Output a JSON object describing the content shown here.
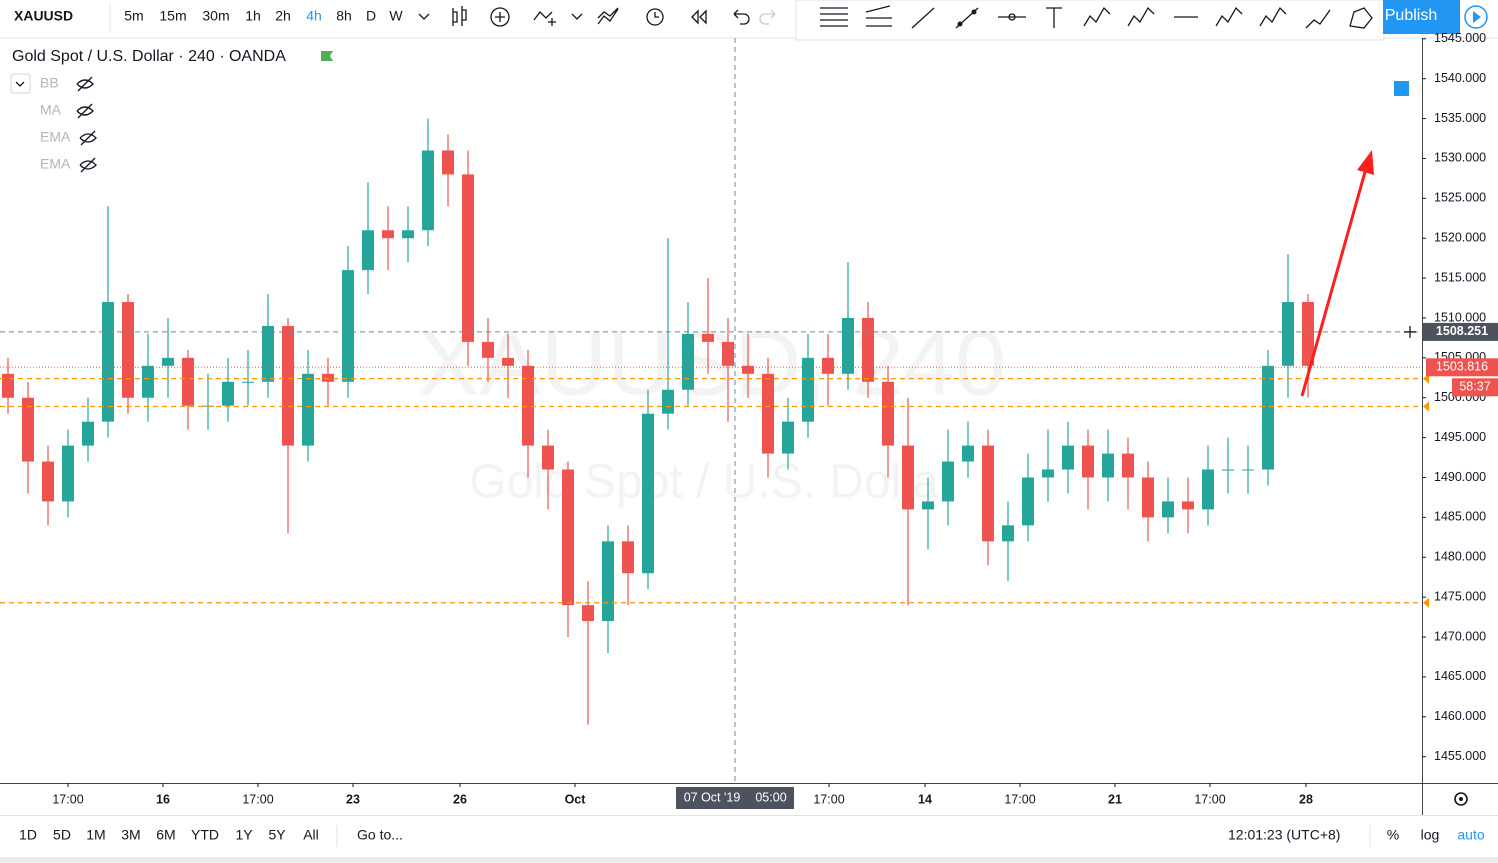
{
  "toolbar": {
    "symbol": "XAUUSD",
    "intervals": [
      "5m",
      "15m",
      "30m",
      "1h",
      "2h",
      "4h",
      "8h",
      "D",
      "W"
    ],
    "publish": "Publish"
  },
  "legend": {
    "title": "Gold Spot / U.S. Dollar · 240 · OANDA",
    "indicators": [
      "BB",
      "MA",
      "EMA",
      "EMA"
    ]
  },
  "watermark": {
    "symbol": "XAUUSD, 240",
    "name": "Gold Spot / U.S. Dollar"
  },
  "chart_data": {
    "type": "candlestick",
    "up_color": "#26a69a",
    "down_color": "#ef5350",
    "open": [
      1503,
      1500,
      1492,
      1487,
      1494,
      1497,
      1512,
      1500,
      1504,
      1505,
      1499,
      1499,
      1502,
      1502,
      1509,
      1494,
      1503,
      1502,
      1516,
      1521,
      1520,
      1521,
      1531,
      1528,
      1507,
      1505,
      1504,
      1494,
      1491,
      1474,
      1472,
      1482,
      1478,
      1498,
      1501,
      1508,
      1507,
      1504,
      1503,
      1493,
      1497,
      1505,
      1503,
      1510,
      1502,
      1494,
      1486,
      1487,
      1492,
      1494,
      1482,
      1484,
      1490,
      1491,
      1494,
      1490,
      1493,
      1490,
      1485,
      1487,
      1486,
      1491,
      1491,
      1491,
      1504,
      1512
    ],
    "high": [
      1505,
      1502,
      1494,
      1496,
      1500,
      1524,
      1513,
      1508,
      1510,
      1506,
      1503,
      1505,
      1506,
      1513,
      1510,
      1506,
      1505,
      1519,
      1527,
      1524,
      1524,
      1535,
      1533,
      1531,
      1510,
      1508,
      1506,
      1496,
      1492,
      1477,
      1484,
      1484,
      1501,
      1520,
      1512,
      1515,
      1510,
      1508,
      1505,
      1500,
      1508,
      1508,
      1517,
      1512,
      1504,
      1500,
      1490,
      1496,
      1497,
      1496,
      1487,
      1493,
      1496,
      1497,
      1496,
      1496,
      1495,
      1492,
      1490,
      1490,
      1494,
      1495,
      1494,
      1506,
      1518,
      1513
    ],
    "low": [
      1498,
      1488,
      1484,
      1485,
      1492,
      1495,
      1498,
      1497,
      1500,
      1496,
      1496,
      1497,
      1499,
      1500,
      1483,
      1492,
      1499,
      1500,
      1513,
      1516,
      1517,
      1519,
      1524,
      1504,
      1502,
      1500,
      1490,
      1486,
      1470,
      1459,
      1468,
      1474,
      1476,
      1496,
      1499,
      1503,
      1497,
      1500,
      1490,
      1491,
      1495,
      1499,
      1501,
      1500,
      1490,
      1474,
      1481,
      1484,
      1490,
      1479,
      1477,
      1482,
      1487,
      1488,
      1486,
      1487,
      1486,
      1482,
      1483,
      1483,
      1484,
      1488,
      1488,
      1489,
      1500,
      1500
    ],
    "close": [
      1500,
      1492,
      1487,
      1494,
      1497,
      1512,
      1500,
      1504,
      1505,
      1499,
      1499,
      1502,
      1502,
      1509,
      1494,
      1503,
      1502,
      1516,
      1521,
      1520,
      1521,
      1531,
      1528,
      1507,
      1505,
      1504,
      1494,
      1491,
      1474,
      1472,
      1482,
      1478,
      1498,
      1501,
      1508,
      1507,
      1504,
      1503,
      1493,
      1497,
      1505,
      1503,
      1510,
      1502,
      1494,
      1486,
      1487,
      1492,
      1494,
      1482,
      1484,
      1490,
      1491,
      1494,
      1490,
      1493,
      1490,
      1485,
      1487,
      1486,
      1491,
      1491,
      1491,
      1504,
      1512,
      1504
    ],
    "xlim": [
      -0.4,
      70.7
    ],
    "ylim": [
      1451.7,
      1545.1
    ],
    "yticks": [
      {
        "value": 1455,
        "label": "1455.000"
      },
      {
        "value": 1460,
        "label": "1460.000"
      },
      {
        "value": 1465,
        "label": "1465.000"
      },
      {
        "value": 1470,
        "label": "1470.000"
      },
      {
        "value": 1475,
        "label": "1475.000"
      },
      {
        "value": 1480,
        "label": "1480.000"
      },
      {
        "value": 1485,
        "label": "1485.000"
      },
      {
        "value": 1490,
        "label": "1490.000"
      },
      {
        "value": 1495,
        "label": "1495.000"
      },
      {
        "value": 1500,
        "label": "1500.000"
      },
      {
        "value": 1505,
        "label": "1505.000"
      },
      {
        "value": 1510,
        "label": "1510.000"
      },
      {
        "value": 1515,
        "label": "1515.000"
      },
      {
        "value": 1520,
        "label": "1520.000"
      },
      {
        "value": 1525,
        "label": "1525.000"
      },
      {
        "value": 1530,
        "label": "1530.000"
      },
      {
        "value": 1535,
        "label": "1535.000"
      },
      {
        "value": 1540,
        "label": "1540.000"
      },
      {
        "value": 1545,
        "label": "1545.000"
      }
    ],
    "xticks": [
      {
        "value": 3,
        "label": "17:00"
      },
      {
        "value": 7.75,
        "label": "16"
      },
      {
        "value": 12.5,
        "label": "17:00"
      },
      {
        "value": 17.25,
        "label": "23"
      },
      {
        "value": 22.6,
        "label": "26"
      },
      {
        "value": 28.35,
        "label": "Oct"
      },
      {
        "value": 41.05,
        "label": "17:00"
      },
      {
        "value": 45.85,
        "label": "14"
      },
      {
        "value": 50.6,
        "label": "17:00"
      },
      {
        "value": 55.35,
        "label": "21"
      },
      {
        "value": 60.1,
        "label": "17:00"
      },
      {
        "value": 64.9,
        "label": "28"
      }
    ],
    "levels": [
      1502.4,
      1498.9,
      1474.3
    ],
    "level_color": "#ff9800",
    "last_price": 1503.816,
    "countdown": "58:37",
    "crosshair": {
      "x": 36.35,
      "y": 1508.251,
      "date": "07 Oct '19",
      "time": "05:00"
    }
  },
  "bottom": {
    "ranges": [
      "1D",
      "5D",
      "1M",
      "3M",
      "6M",
      "YTD",
      "1Y",
      "5Y",
      "All"
    ],
    "goto": "Go to...",
    "clock": "12:01:23 (UTC+8)",
    "percent": "%",
    "log": "log",
    "auto": "auto"
  }
}
